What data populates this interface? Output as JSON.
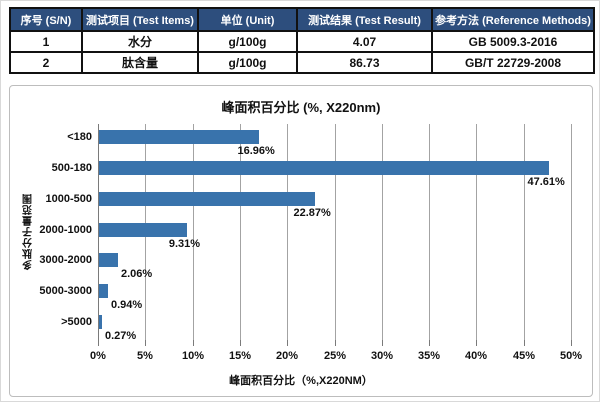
{
  "table": {
    "headers": [
      "序号 (S/N)",
      "测试项目 (Test Items)",
      "单位 (Unit)",
      "测试结果 (Test Result)",
      "参考方法 (Reference Methods)"
    ],
    "rows": [
      [
        "1",
        "水分",
        "g/100g",
        "4.07",
        "GB 5009.3-2016"
      ],
      [
        "2",
        "肽含量",
        "g/100g",
        "86.73",
        "GB/T 22729-2008"
      ]
    ],
    "header_bg": "#2d4e7d",
    "header_text_color": "#ffffff"
  },
  "chart_data": {
    "type": "bar",
    "orientation": "horizontal",
    "title": "峰面积百分比 (%, X220nm)",
    "categories": [
      "<180",
      "500-180",
      "1000-500",
      "2000-1000",
      "3000-2000",
      "5000-3000",
      ">5000"
    ],
    "values": [
      16.96,
      47.61,
      22.87,
      9.31,
      2.06,
      0.94,
      0.27
    ],
    "value_labels": [
      "16.96%",
      "47.61%",
      "22.87%",
      "9.31%",
      "2.06%",
      "0.94%",
      "0.27%"
    ],
    "xlabel": "峰面积百分比（%,X220NM）",
    "ylabel": "多肽分子量范围",
    "xlim": [
      0,
      50
    ],
    "x_ticks": [
      "0%",
      "5%",
      "10%",
      "15%",
      "20%",
      "25%",
      "30%",
      "35%",
      "40%",
      "45%",
      "50%"
    ],
    "grid": true,
    "legend": "none",
    "bar_color": "#3973ac",
    "gridline_color": "#a3a3a3"
  }
}
